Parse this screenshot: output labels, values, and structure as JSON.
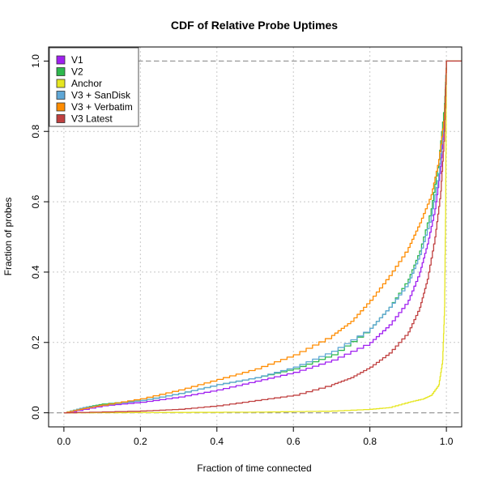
{
  "chart_data": {
    "type": "line",
    "title": "CDF of Relative Probe Uptimes",
    "xlabel": "Fraction of time connected",
    "ylabel": "Fraction of probes",
    "xlim": [
      -0.04,
      1.04
    ],
    "ylim": [
      -0.04,
      1.04
    ],
    "xticks": [
      "0.0",
      "0.2",
      "0.4",
      "0.6",
      "0.8",
      "1.0"
    ],
    "yticks": [
      "0.0",
      "0.2",
      "0.4",
      "0.6",
      "0.8",
      "1.0"
    ],
    "grid": true,
    "legend_position": "top-left",
    "series": [
      {
        "name": "V1",
        "color": "#a020f0",
        "points": [
          [
            0,
            0
          ],
          [
            0.1,
            0.02
          ],
          [
            0.2,
            0.03
          ],
          [
            0.3,
            0.045
          ],
          [
            0.4,
            0.065
          ],
          [
            0.5,
            0.09
          ],
          [
            0.6,
            0.115
          ],
          [
            0.7,
            0.15
          ],
          [
            0.8,
            0.2
          ],
          [
            0.85,
            0.25
          ],
          [
            0.9,
            0.32
          ],
          [
            0.93,
            0.4
          ],
          [
            0.95,
            0.48
          ],
          [
            0.97,
            0.58
          ],
          [
            0.985,
            0.7
          ],
          [
            0.995,
            0.85
          ],
          [
            1.0,
            1.0
          ]
        ]
      },
      {
        "name": "V2",
        "color": "#2db84d",
        "points": [
          [
            0,
            0
          ],
          [
            0.05,
            0.015
          ],
          [
            0.1,
            0.025
          ],
          [
            0.2,
            0.035
          ],
          [
            0.3,
            0.055
          ],
          [
            0.4,
            0.08
          ],
          [
            0.5,
            0.1
          ],
          [
            0.6,
            0.125
          ],
          [
            0.7,
            0.165
          ],
          [
            0.8,
            0.24
          ],
          [
            0.85,
            0.3
          ],
          [
            0.9,
            0.38
          ],
          [
            0.93,
            0.46
          ],
          [
            0.96,
            0.58
          ],
          [
            0.98,
            0.72
          ],
          [
            0.995,
            0.88
          ],
          [
            1.0,
            1.0
          ]
        ]
      },
      {
        "name": "Anchor",
        "color": "#e6e620",
        "points": [
          [
            0,
            0
          ],
          [
            0.5,
            0.002
          ],
          [
            0.7,
            0.005
          ],
          [
            0.8,
            0.01
          ],
          [
            0.85,
            0.015
          ],
          [
            0.9,
            0.03
          ],
          [
            0.94,
            0.04
          ],
          [
            0.96,
            0.05
          ],
          [
            0.98,
            0.08
          ],
          [
            0.99,
            0.15
          ],
          [
            0.995,
            0.3
          ],
          [
            0.998,
            0.6
          ],
          [
            1.0,
            1.0
          ]
        ]
      },
      {
        "name": "V3 + SanDisk",
        "color": "#5fa7d6",
        "points": [
          [
            0,
            0
          ],
          [
            0.05,
            0.015
          ],
          [
            0.1,
            0.022
          ],
          [
            0.2,
            0.035
          ],
          [
            0.3,
            0.055
          ],
          [
            0.4,
            0.08
          ],
          [
            0.5,
            0.1
          ],
          [
            0.6,
            0.13
          ],
          [
            0.7,
            0.175
          ],
          [
            0.8,
            0.24
          ],
          [
            0.85,
            0.3
          ],
          [
            0.9,
            0.37
          ],
          [
            0.93,
            0.45
          ],
          [
            0.96,
            0.56
          ],
          [
            0.98,
            0.68
          ],
          [
            0.995,
            0.85
          ],
          [
            1.0,
            1.0
          ]
        ]
      },
      {
        "name": "V3 + Verbatim",
        "color": "#ff8c00",
        "points": [
          [
            0,
            0
          ],
          [
            0.05,
            0.012
          ],
          [
            0.1,
            0.022
          ],
          [
            0.2,
            0.04
          ],
          [
            0.3,
            0.065
          ],
          [
            0.4,
            0.095
          ],
          [
            0.5,
            0.125
          ],
          [
            0.6,
            0.165
          ],
          [
            0.7,
            0.22
          ],
          [
            0.75,
            0.26
          ],
          [
            0.8,
            0.32
          ],
          [
            0.85,
            0.39
          ],
          [
            0.9,
            0.47
          ],
          [
            0.93,
            0.54
          ],
          [
            0.96,
            0.62
          ],
          [
            0.98,
            0.72
          ],
          [
            0.995,
            0.85
          ],
          [
            1.0,
            1.0
          ]
        ]
      },
      {
        "name": "V3 Latest",
        "color": "#c04040",
        "points": [
          [
            0,
            0
          ],
          [
            0.2,
            0.005
          ],
          [
            0.3,
            0.01
          ],
          [
            0.4,
            0.02
          ],
          [
            0.5,
            0.035
          ],
          [
            0.6,
            0.05
          ],
          [
            0.7,
            0.08
          ],
          [
            0.75,
            0.1
          ],
          [
            0.8,
            0.13
          ],
          [
            0.85,
            0.17
          ],
          [
            0.9,
            0.23
          ],
          [
            0.93,
            0.3
          ],
          [
            0.95,
            0.38
          ],
          [
            0.97,
            0.5
          ],
          [
            0.985,
            0.63
          ],
          [
            0.995,
            0.8
          ],
          [
            1.0,
            1.0
          ]
        ]
      }
    ],
    "reference_lines": [
      0.0,
      1.0
    ]
  }
}
